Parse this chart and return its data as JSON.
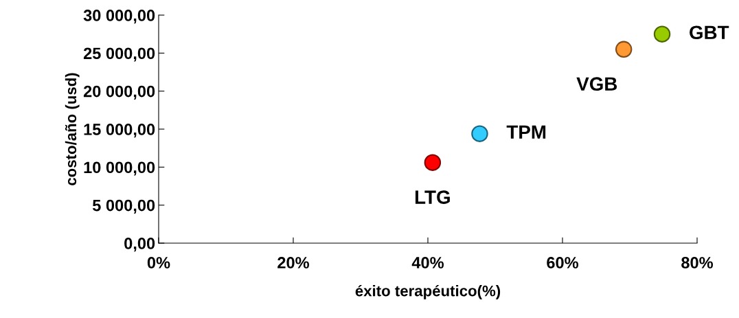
{
  "chart_data": {
    "type": "scatter",
    "xlabel": "éxito terapéutico(%)",
    "ylabel": "costo/año (usd)",
    "series": [
      {
        "name": "LTG",
        "color": "#ff0000",
        "x": [
          40.7
        ],
        "values": [
          10600
        ]
      },
      {
        "name": "TPM",
        "color": "#33ccff",
        "x": [
          47.7
        ],
        "values": [
          14400
        ]
      },
      {
        "name": "VGB",
        "color": "#ff9933",
        "x": [
          69.1
        ],
        "values": [
          25500
        ]
      },
      {
        "name": "GBT",
        "color": "#99cc00",
        "x": [
          74.8
        ],
        "values": [
          27500
        ]
      }
    ],
    "xlim": [
      0,
      80
    ],
    "xticks": [
      {
        "value": 0,
        "label": "0%"
      },
      {
        "value": 20,
        "label": "20%"
      },
      {
        "value": 40,
        "label": "40%"
      },
      {
        "value": 60,
        "label": "60%"
      },
      {
        "value": 80,
        "label": "80%"
      }
    ],
    "ylim": [
      0,
      30000
    ],
    "yticks": [
      {
        "value": 0,
        "label": "0,00"
      },
      {
        "value": 5000,
        "label": "5 000,00"
      },
      {
        "value": 10000,
        "label": "10 000,00"
      },
      {
        "value": 15000,
        "label": "15 000,00"
      },
      {
        "value": 20000,
        "label": "20 000,00"
      },
      {
        "value": 25000,
        "label": "25 000,00"
      },
      {
        "value": 30000,
        "label": "30 000,00"
      }
    ],
    "marker": "circle",
    "grid": false,
    "legend": false
  }
}
